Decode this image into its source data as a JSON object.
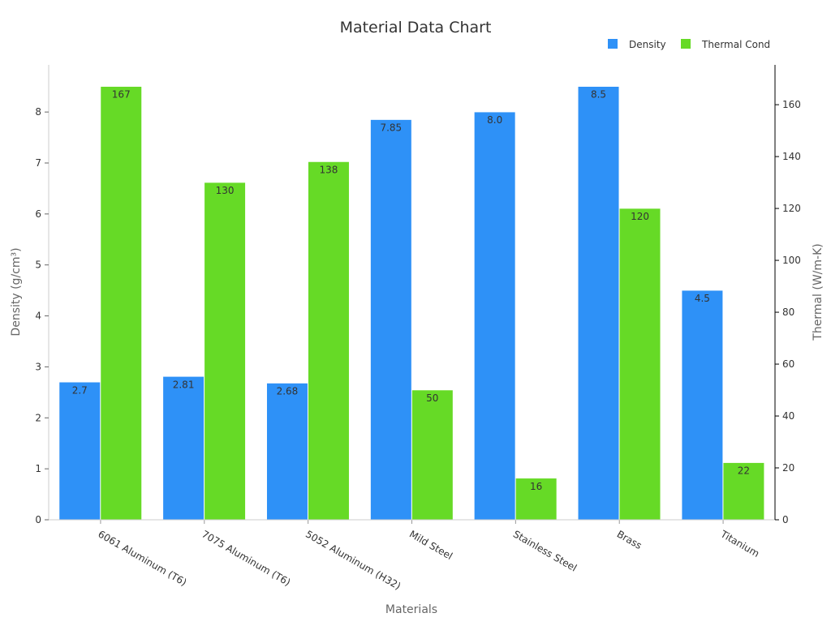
{
  "chart_data": {
    "type": "bar",
    "title": "Material Data Chart",
    "xlabel": "Materials",
    "ylabel": "Density (g/cm³)",
    "y2label": "Thermal (W/m-K)",
    "categories": [
      "6061 Aluminum (T6)",
      "7075 Aluminum (T6)",
      "5052 Aluminum (H32)",
      "Mild Steel",
      "Stainless Steel",
      "Brass",
      "Titanium"
    ],
    "series": [
      {
        "name": "Density",
        "axis": "left",
        "color": "#2e91f7",
        "values": [
          2.7,
          2.81,
          2.68,
          7.85,
          8.0,
          8.5,
          4.5
        ],
        "labels": [
          "2.7",
          "2.81",
          "2.68",
          "7.85",
          "8.0",
          "8.5",
          "4.5"
        ]
      },
      {
        "name": "Thermal Cond",
        "axis": "right",
        "color": "#66da26",
        "values": [
          167,
          130,
          138,
          50,
          16,
          120,
          22
        ],
        "labels": [
          "167",
          "130",
          "138",
          "50",
          "16",
          "120",
          "22"
        ]
      }
    ],
    "ylim": [
      0,
      8.925
    ],
    "y2lim": [
      0,
      175.35
    ],
    "yticks": [
      0,
      1,
      2,
      3,
      4,
      5,
      6,
      7,
      8
    ],
    "y2ticks": [
      0,
      20,
      40,
      60,
      80,
      100,
      120,
      140,
      160
    ],
    "legend": "top-right",
    "grid": false
  }
}
